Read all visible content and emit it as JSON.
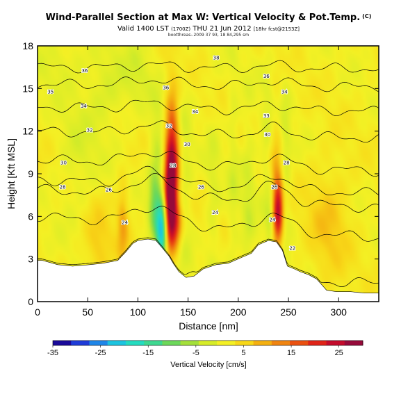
{
  "header": {
    "title": "Wind-Parallel Section at Max W: Vertical Velocity & Pot.Temp.",
    "copyright": "(C)",
    "valid_time": "Valid 1400 LST",
    "valid_time_utc": "(1700Z)",
    "valid_date": "THU 21 Jun 2012",
    "forecast_info": "[18hr fcst@2153Z]",
    "small_print": "bootthreas-.2009 37 93, 18 84,295 sm"
  },
  "chart_data": {
    "type": "heatmap",
    "title": "Wind-Parallel Section at Max W: Vertical Velocity & Pot.Temp.",
    "xlabel": "Distance [nm]",
    "ylabel": "Height [Kft MSL]",
    "xlim": [
      0,
      340
    ],
    "ylim": [
      0,
      18
    ],
    "xticks": [
      0,
      50,
      100,
      150,
      200,
      250,
      300
    ],
    "xtick_labels": [
      "0",
      "50",
      "100",
      "150",
      "200",
      "250",
      "300"
    ],
    "yticks": [
      0,
      3,
      6,
      9,
      12,
      15,
      18
    ],
    "ytick_labels": [
      "0",
      "3",
      "6",
      "9",
      "12",
      "15",
      "18"
    ],
    "colorbar": {
      "label": "Vertical Velocity [cm/s]",
      "min": -35,
      "max": 30,
      "ticks": [
        -35,
        -25,
        -15,
        -5,
        5,
        15,
        25
      ],
      "tick_labels": [
        "-35",
        "-25",
        "-15",
        "-5",
        "5",
        "15",
        "25"
      ],
      "colors": [
        "#1a0a9a",
        "#1f3cd8",
        "#1f86e8",
        "#1cc4e0",
        "#24dcc0",
        "#3ed890",
        "#6cd85a",
        "#a4e03a",
        "#d6ec28",
        "#f4f024",
        "#f8d818",
        "#f4b010",
        "#f08410",
        "#ea5010",
        "#e02418",
        "#c40c2c",
        "#960a3a"
      ]
    },
    "terrain_top_kft": [
      {
        "x": 0,
        "z": 2.9
      },
      {
        "x": 5,
        "z": 2.9
      },
      {
        "x": 20,
        "z": 2.6
      },
      {
        "x": 35,
        "z": 2.5
      },
      {
        "x": 52,
        "z": 2.6
      },
      {
        "x": 65,
        "z": 2.7
      },
      {
        "x": 80,
        "z": 2.9
      },
      {
        "x": 88,
        "z": 3.5
      },
      {
        "x": 95,
        "z": 4.1
      },
      {
        "x": 100,
        "z": 4.3
      },
      {
        "x": 110,
        "z": 4.4
      },
      {
        "x": 118,
        "z": 4.3
      },
      {
        "x": 124,
        "z": 3.8
      },
      {
        "x": 131,
        "z": 3.2
      },
      {
        "x": 136,
        "z": 2.6
      },
      {
        "x": 141,
        "z": 2.1
      },
      {
        "x": 148,
        "z": 1.7
      },
      {
        "x": 156,
        "z": 1.8
      },
      {
        "x": 165,
        "z": 2.3
      },
      {
        "x": 178,
        "z": 2.6
      },
      {
        "x": 190,
        "z": 2.7
      },
      {
        "x": 203,
        "z": 3.1
      },
      {
        "x": 213,
        "z": 3.4
      },
      {
        "x": 220,
        "z": 4.0
      },
      {
        "x": 230,
        "z": 4.3
      },
      {
        "x": 238,
        "z": 4.2
      },
      {
        "x": 244,
        "z": 3.6
      },
      {
        "x": 249,
        "z": 2.5
      },
      {
        "x": 256,
        "z": 2.3
      },
      {
        "x": 262,
        "z": 2.1
      },
      {
        "x": 270,
        "z": 1.9
      },
      {
        "x": 278,
        "z": 1.6
      },
      {
        "x": 288,
        "z": 0.8
      },
      {
        "x": 298,
        "z": 0.7
      },
      {
        "x": 312,
        "z": 0.7
      },
      {
        "x": 326,
        "z": 0.6
      },
      {
        "x": 340,
        "z": 0.6
      }
    ],
    "vertical_velocity_features": [
      {
        "x": 134,
        "z": 9.6,
        "sx": 5,
        "sz": 3.2,
        "w": 27
      },
      {
        "x": 131,
        "z": 6.5,
        "sx": 4,
        "sz": 2.0,
        "w": 18
      },
      {
        "x": 138,
        "z": 5.3,
        "sx": 5,
        "sz": 1.2,
        "w": 12
      },
      {
        "x": 124,
        "z": 5.0,
        "sx": 4,
        "sz": 1.6,
        "w": -24
      },
      {
        "x": 116,
        "z": 6.8,
        "sx": 4,
        "sz": 1.6,
        "w": -9
      },
      {
        "x": 120,
        "z": 10.0,
        "sx": 6,
        "sz": 3.0,
        "w": -6
      },
      {
        "x": 145,
        "z": 8.0,
        "sx": 6,
        "sz": 5.0,
        "w": -4
      },
      {
        "x": 240,
        "z": 6.4,
        "sx": 3.5,
        "sz": 1.6,
        "w": 20
      },
      {
        "x": 236,
        "z": 7.5,
        "sx": 5,
        "sz": 4.0,
        "w": 8
      },
      {
        "x": 232,
        "z": 5.5,
        "sx": 3,
        "sz": 2.0,
        "w": -6
      },
      {
        "x": 230,
        "z": 10.0,
        "sx": 5,
        "sz": 4.0,
        "w": -5
      },
      {
        "x": 247,
        "z": 10.0,
        "sx": 4,
        "sz": 4.0,
        "w": -4
      },
      {
        "x": 210,
        "z": 7.0,
        "sx": 5,
        "sz": 5.0,
        "w": -4
      },
      {
        "x": 195,
        "z": 9.0,
        "sx": 4,
        "sz": 6.0,
        "w": -3
      },
      {
        "x": 175,
        "z": 7.0,
        "sx": 5,
        "sz": 5.0,
        "w": -3
      },
      {
        "x": 85,
        "z": 5.5,
        "sx": 4,
        "sz": 2.0,
        "w": 8
      },
      {
        "x": 70,
        "z": 15.0,
        "sx": 15,
        "sz": 2.0,
        "w": -4
      },
      {
        "x": 100,
        "z": 16.0,
        "sx": 10,
        "sz": 2.0,
        "w": -3
      },
      {
        "x": 290,
        "z": 5.5,
        "sx": 15,
        "sz": 3.0,
        "w": 5
      },
      {
        "x": 40,
        "z": 10.0,
        "sx": 15,
        "sz": 3.0,
        "w": -3
      },
      {
        "x": 60,
        "z": 4.0,
        "sx": 10,
        "sz": 2.0,
        "w": 5
      },
      {
        "x": 20,
        "z": 17.0,
        "sx": 20,
        "sz": 1.5,
        "w": -3
      }
    ],
    "pot_temp_contours": [
      {
        "value": 22,
        "base_z": 1.9,
        "bump": 0.3,
        "tilt": -0.6
      },
      {
        "value": 24,
        "base_z": 6.0,
        "bump": 0.6,
        "tilt": -1.5
      },
      {
        "value": 26,
        "base_z": 7.9,
        "bump": 0.6,
        "tilt": -1.3
      },
      {
        "value": 28,
        "base_z": 8.6,
        "bump": 0.5,
        "tilt": -1.0
      },
      {
        "value": 30,
        "base_z": 10.0,
        "bump": 0.4,
        "tilt": -0.8
      },
      {
        "value": 32,
        "base_z": 12.0,
        "bump": 0.3,
        "tilt": -0.5
      },
      {
        "value": 34,
        "base_z": 13.7,
        "bump": 0.2,
        "tilt": -0.3
      },
      {
        "value": 36,
        "base_z": 15.3,
        "bump": 0.2,
        "tilt": -0.2
      },
      {
        "value": 38,
        "base_z": 16.5,
        "bump": 0.1,
        "tilt": -0.1
      }
    ],
    "contour_labels": [
      {
        "text": "38",
        "x": 178,
        "z": 17.2
      },
      {
        "text": "36",
        "x": 47,
        "z": 16.3
      },
      {
        "text": "36",
        "x": 128,
        "z": 15.1
      },
      {
        "text": "36",
        "x": 228,
        "z": 15.9
      },
      {
        "text": "35",
        "x": 13,
        "z": 14.8
      },
      {
        "text": "34",
        "x": 46,
        "z": 13.8
      },
      {
        "text": "34",
        "x": 157,
        "z": 13.4
      },
      {
        "text": "34",
        "x": 246,
        "z": 14.8
      },
      {
        "text": "33",
        "x": 228,
        "z": 13.1
      },
      {
        "text": "32",
        "x": 52,
        "z": 12.1
      },
      {
        "text": "32",
        "x": 131,
        "z": 12.4
      },
      {
        "text": "30",
        "x": 229,
        "z": 11.8
      },
      {
        "text": "30",
        "x": 26,
        "z": 9.8
      },
      {
        "text": "30",
        "x": 149,
        "z": 11.1
      },
      {
        "text": "28",
        "x": 135,
        "z": 9.6
      },
      {
        "text": "28",
        "x": 248,
        "z": 9.8
      },
      {
        "text": "28",
        "x": 25,
        "z": 8.1
      },
      {
        "text": "26",
        "x": 71,
        "z": 7.9
      },
      {
        "text": "26",
        "x": 163,
        "z": 8.1
      },
      {
        "text": "26",
        "x": 236,
        "z": 8.1
      },
      {
        "text": "24",
        "x": 87,
        "z": 5.6
      },
      {
        "text": "24",
        "x": 177,
        "z": 6.3
      },
      {
        "text": "24",
        "x": 234,
        "z": 5.8
      },
      {
        "text": "22",
        "x": 254,
        "z": 3.8
      }
    ]
  }
}
